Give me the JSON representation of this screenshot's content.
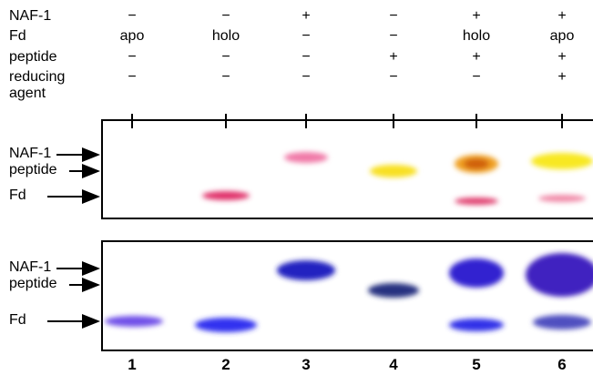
{
  "conditions": {
    "rows": [
      {
        "label": "NAF-1",
        "cells": [
          "−",
          "−",
          "+",
          "−",
          "+",
          "+"
        ]
      },
      {
        "label": "Fd",
        "cells": [
          "apo",
          "holo",
          "−",
          "−",
          "holo",
          "apo"
        ]
      },
      {
        "label": "peptide",
        "cells": [
          "−",
          "−",
          "−",
          "+",
          "+",
          "+"
        ]
      },
      {
        "label": "reducing agent",
        "cells": [
          "−",
          "−",
          "−",
          "−",
          "−",
          "+"
        ]
      }
    ]
  },
  "panels": [
    {
      "labels": [
        "NAF-1",
        "peptide",
        "Fd"
      ]
    },
    {
      "labels": [
        "NAF-1",
        "peptide",
        "Fd"
      ]
    }
  ],
  "lanes": [
    "1",
    "2",
    "3",
    "4",
    "5",
    "6"
  ]
}
